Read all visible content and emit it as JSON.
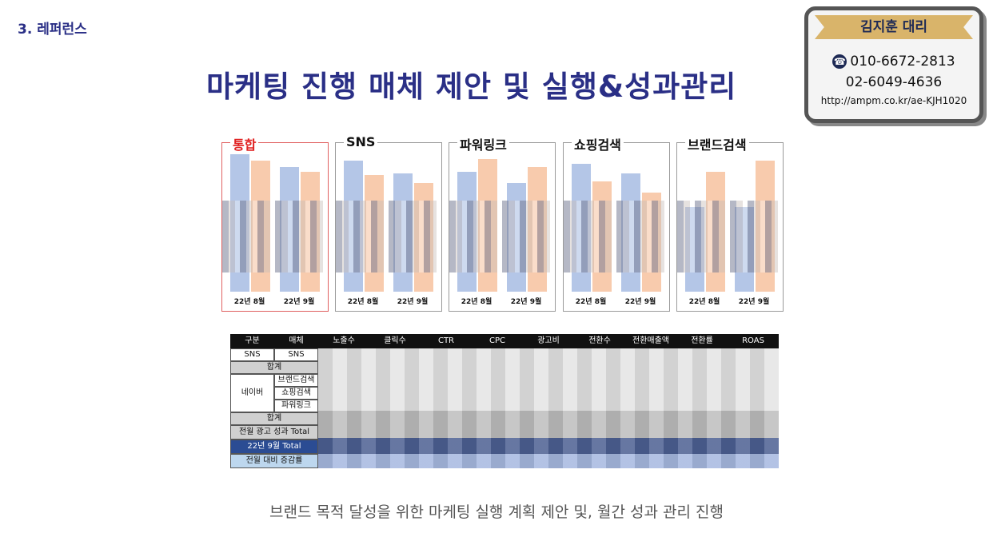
{
  "section_label": "3. 레퍼런스",
  "title": "마케팅 진행 매체 제안 및 실행&성과관리",
  "contact": {
    "name": "김지훈 대리",
    "mobile": "010-6672-2813",
    "tel": "02-6049-4636",
    "url": "http://ampm.co.kr/ae-KJH1020"
  },
  "panels": [
    {
      "title": "통합",
      "x_labels": [
        "22년 8월",
        "22년 9월"
      ],
      "highlight": true
    },
    {
      "title": "SNS",
      "x_labels": [
        "22년 8월",
        "22년 9월"
      ]
    },
    {
      "title": "파워링크",
      "x_labels": [
        "22년 8월",
        "22년 9월"
      ]
    },
    {
      "title": "쇼핑검색",
      "x_labels": [
        "22년 8월",
        "22년 9월"
      ]
    },
    {
      "title": "브랜드검색",
      "x_labels": [
        "22년 8월",
        "22년 9월"
      ]
    }
  ],
  "chart_data": [
    {
      "type": "bar",
      "title": "통합",
      "categories": [
        "22년 8월",
        "22년 9월"
      ],
      "series": [
        {
          "values": [
            0.97,
            0.88
          ]
        },
        {
          "values": [
            0.92,
            0.84
          ]
        }
      ],
      "colors": [
        "#b4c6e7",
        "#f8cbad"
      ]
    },
    {
      "type": "bar",
      "title": "SNS",
      "categories": [
        "22년 8월",
        "22년 9월"
      ],
      "series": [
        {
          "values": [
            0.93,
            0.82
          ]
        },
        {
          "values": [
            0.81,
            0.75
          ]
        }
      ],
      "colors": [
        "#b4c6e7",
        "#f8cbad"
      ]
    },
    {
      "type": "bar",
      "title": "파워링크",
      "categories": [
        "22년 8월",
        "22년 9월"
      ],
      "series": [
        {
          "values": [
            0.82,
            0.76
          ]
        },
        {
          "values": [
            0.94,
            0.88
          ]
        }
      ],
      "colors": [
        "#b4c6e7",
        "#f8cbad"
      ]
    },
    {
      "type": "bar",
      "title": "쇼핑검색",
      "categories": [
        "22년 8월",
        "22년 9월"
      ],
      "series": [
        {
          "values": [
            0.92,
            0.85
          ]
        },
        {
          "values": [
            0.78,
            0.7
          ]
        }
      ],
      "colors": [
        "#b4c6e7",
        "#f8cbad"
      ]
    },
    {
      "type": "bar",
      "title": "브랜드검색",
      "categories": [
        "22년 8월",
        "22년 9월"
      ],
      "series": [
        {
          "values": [
            0.6,
            0.6
          ]
        },
        {
          "values": [
            0.85,
            0.93
          ]
        }
      ],
      "colors": [
        "#b4c6e7",
        "#f8cbad"
      ]
    }
  ],
  "table": {
    "headers": [
      "구분",
      "매체",
      "노출수",
      "클릭수",
      "CTR",
      "CPC",
      "광고비",
      "전환수",
      "전환매출액",
      "전환률",
      "ROAS"
    ],
    "rows": [
      "SNS",
      "SNS",
      "합계",
      "네이버",
      "브랜드검색",
      "쇼핑검색",
      "파워링크",
      "합계",
      "전월 광고 성과 Total",
      "22년 9월 Total",
      "전월 대비 증감률"
    ]
  },
  "caption": "브랜드 목적 달성을 위한 마케팅 실행 계획 제안 및, 월간 성과 관리 진행"
}
